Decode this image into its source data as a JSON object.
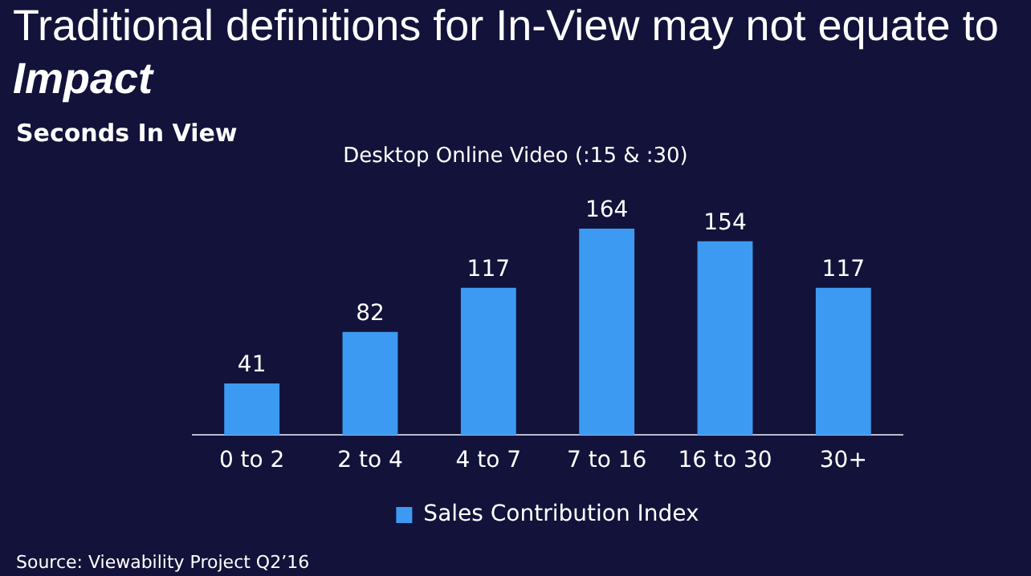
{
  "chart_data": {
    "type": "bar",
    "title": "Traditional definitions for In-View may not equate to Impact",
    "subtitle": "Seconds In View",
    "annotations": [
      "Desktop Online Video (:15 & :30)",
      "Source: Viewability Project Q2’16"
    ],
    "categories": [
      "0 to 2",
      "2 to 4",
      "4 to 7",
      "7 to 16",
      "16 to 30",
      "30+"
    ],
    "series": [
      {
        "name": "Sales Contribution Index",
        "color": "#3d9af2",
        "values": [
          41,
          82,
          117,
          164,
          154,
          117
        ]
      }
    ],
    "data_labels": true,
    "legend": "bottom",
    "grid": false
  }
}
